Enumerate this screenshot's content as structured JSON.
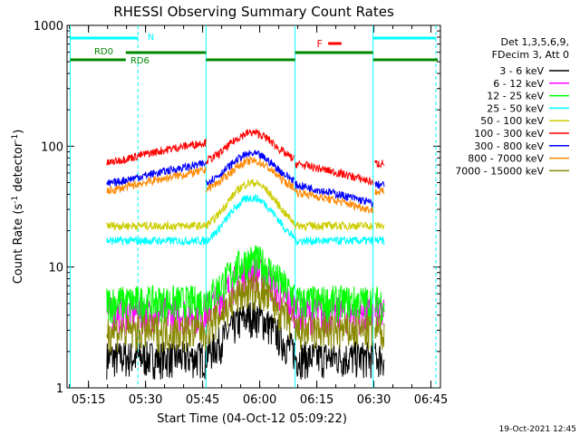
{
  "chart_data": {
    "type": "line",
    "title": "RHESSI Observing Summary Count Rates",
    "xlabel": "Start Time (04-Oct-12 05:09:22)",
    "ylabel_main": "Count Rate (s",
    "ylabel_sup1": "-1",
    "ylabel_mid": " detector",
    "ylabel_sup2": "-1",
    "ylabel_end": ")",
    "yscale": "log",
    "xlim": [
      "05:09:22",
      "06:47:30"
    ],
    "ylim": [
      1,
      1000
    ],
    "x_ticks": [
      "05:15",
      "05:30",
      "05:45",
      "06:00",
      "06:15",
      "06:30",
      "06:45"
    ],
    "y_ticks": [
      "1",
      "10",
      "100",
      "1000"
    ],
    "legend_header": [
      "Det 1,3,5,6,9,",
      "FDecim 3, Att 0"
    ],
    "timestamp": "19-Oct-2021 12:45",
    "legend_placement": "right",
    "series": [
      {
        "name": "3 - 6 keV",
        "color": "#000000",
        "level": 1.8
      },
      {
        "name": "6 - 12 keV",
        "color": "#ff00ff",
        "level": 4.2
      },
      {
        "name": "12 - 25 keV",
        "color": "#00ff00",
        "level": 5.2
      },
      {
        "name": "25 - 50 keV",
        "color": "#00ffff",
        "level": 15
      },
      {
        "name": "50 - 100 keV",
        "color": "#cccc00",
        "level": 20
      },
      {
        "name": "100 - 300 keV",
        "color": "#ff0000",
        "level": 72
      },
      {
        "name": "300 - 800 keV",
        "color": "#0000ff",
        "level": 48
      },
      {
        "name": "800 - 7000 keV",
        "color": "#ff8800",
        "level": 42
      },
      {
        "name": "7000 - 15000 keV",
        "color": "#888800",
        "level": 3.0
      }
    ],
    "annotations": {
      "night_label": "N",
      "flare_label": "F",
      "rd_labels": [
        "RD0",
        "RD6"
      ]
    }
  }
}
